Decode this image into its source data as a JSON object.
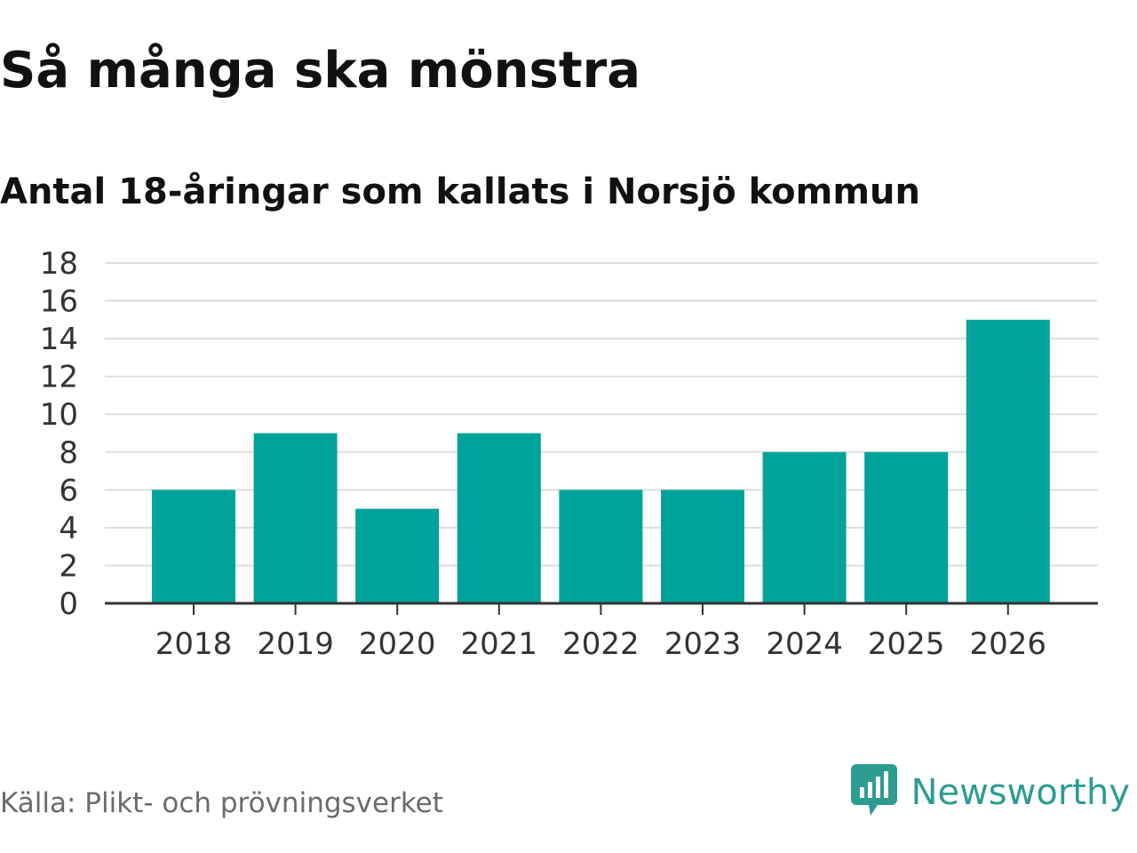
{
  "title": "Så många ska mönstra",
  "subtitle": "Antal 18-åringar som kallats i Norsjö kommun",
  "source": "Källa: Plikt- och prövningsverket",
  "brand": {
    "name": "Newsworthy",
    "icon": "newsworthy-logo-icon"
  },
  "colors": {
    "bar": "#00a39a",
    "grid": "#dddddd",
    "axis": "#333333",
    "brand": "#2d9c91"
  },
  "chart_data": {
    "type": "bar",
    "title": "Så många ska mönstra",
    "subtitle": "Antal 18-åringar som kallats i Norsjö kommun",
    "categories": [
      "2018",
      "2019",
      "2020",
      "2021",
      "2022",
      "2023",
      "2024",
      "2025",
      "2026"
    ],
    "values": [
      6,
      9,
      5,
      9,
      6,
      6,
      8,
      8,
      15
    ],
    "ylim": [
      0,
      18
    ],
    "yticks": [
      0,
      2,
      4,
      6,
      8,
      10,
      12,
      14,
      16,
      18
    ],
    "grid": true,
    "legend": "none"
  }
}
